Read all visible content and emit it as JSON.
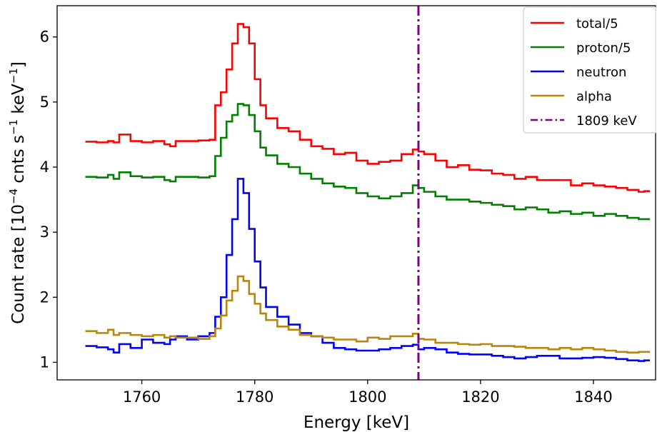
{
  "chart_data": {
    "type": "line",
    "xlabel": "Energy [keV]",
    "ylabel": "Count rate [10$^{-4}$ cnts s$^{-1}$ keV$^{-1}$]",
    "xlim": [
      1745,
      1851
    ],
    "ylim": [
      0.73,
      6.48
    ],
    "xticks": [
      1760,
      1780,
      1800,
      1820,
      1840
    ],
    "yticks": [
      1,
      2,
      3,
      4,
      5,
      6
    ],
    "grid": false,
    "legend_position": "top-right",
    "step": true,
    "vline": {
      "x": 1809,
      "label": "1809 keV",
      "color": "#800080",
      "style": "dashdot"
    },
    "series": [
      {
        "name": "total/5",
        "color": "#ff0000",
        "x": [
          1750,
          1752,
          1754,
          1755,
          1756,
          1758,
          1760,
          1762,
          1764,
          1765,
          1766,
          1768,
          1770,
          1772,
          1773,
          1774,
          1775,
          1776,
          1777,
          1778,
          1779,
          1780,
          1781,
          1782,
          1784,
          1786,
          1788,
          1790,
          1792,
          1794,
          1796,
          1798,
          1800,
          1802,
          1804,
          1806,
          1808,
          1809,
          1810,
          1812,
          1814,
          1816,
          1818,
          1820,
          1822,
          1824,
          1826,
          1828,
          1830,
          1832,
          1834,
          1836,
          1838,
          1840,
          1842,
          1844,
          1846,
          1848,
          1849
        ],
        "y": [
          4.39,
          4.38,
          4.4,
          4.38,
          4.5,
          4.4,
          4.38,
          4.4,
          4.35,
          4.32,
          4.4,
          4.4,
          4.41,
          4.42,
          4.95,
          5.15,
          5.5,
          5.9,
          6.2,
          6.15,
          5.9,
          5.35,
          4.95,
          4.75,
          4.6,
          4.55,
          4.42,
          4.32,
          4.28,
          4.2,
          4.22,
          4.1,
          4.05,
          4.08,
          4.1,
          4.2,
          4.27,
          4.24,
          4.2,
          4.1,
          4.0,
          4.03,
          3.96,
          3.95,
          3.9,
          3.88,
          3.82,
          3.85,
          3.8,
          3.8,
          3.8,
          3.72,
          3.75,
          3.72,
          3.7,
          3.68,
          3.65,
          3.62,
          3.63
        ]
      },
      {
        "name": "proton/5",
        "color": "#008000",
        "x": [
          1750,
          1752,
          1754,
          1755,
          1756,
          1758,
          1760,
          1762,
          1764,
          1765,
          1766,
          1768,
          1770,
          1772,
          1773,
          1774,
          1775,
          1776,
          1777,
          1778,
          1779,
          1780,
          1781,
          1782,
          1784,
          1786,
          1788,
          1790,
          1792,
          1794,
          1796,
          1798,
          1800,
          1802,
          1804,
          1806,
          1808,
          1809,
          1810,
          1812,
          1814,
          1816,
          1818,
          1820,
          1822,
          1824,
          1826,
          1828,
          1830,
          1832,
          1834,
          1836,
          1838,
          1840,
          1842,
          1844,
          1846,
          1848,
          1849
        ],
        "y": [
          3.85,
          3.84,
          3.88,
          3.82,
          3.92,
          3.86,
          3.84,
          3.85,
          3.8,
          3.78,
          3.85,
          3.85,
          3.84,
          3.86,
          4.17,
          4.45,
          4.7,
          4.8,
          4.97,
          4.95,
          4.8,
          4.55,
          4.3,
          4.18,
          4.05,
          4.0,
          3.9,
          3.82,
          3.75,
          3.7,
          3.68,
          3.6,
          3.55,
          3.52,
          3.55,
          3.6,
          3.72,
          3.68,
          3.62,
          3.55,
          3.5,
          3.5,
          3.47,
          3.45,
          3.42,
          3.4,
          3.35,
          3.38,
          3.35,
          3.3,
          3.32,
          3.28,
          3.3,
          3.25,
          3.28,
          3.25,
          3.22,
          3.2,
          3.2
        ]
      },
      {
        "name": "neutron",
        "color": "#0000ff",
        "x": [
          1750,
          1752,
          1754,
          1755,
          1756,
          1758,
          1760,
          1762,
          1764,
          1765,
          1766,
          1768,
          1770,
          1772,
          1773,
          1774,
          1775,
          1776,
          1777,
          1778,
          1779,
          1780,
          1781,
          1782,
          1784,
          1786,
          1788,
          1790,
          1792,
          1794,
          1796,
          1798,
          1800,
          1802,
          1804,
          1806,
          1808,
          1809,
          1810,
          1812,
          1814,
          1816,
          1818,
          1820,
          1822,
          1824,
          1826,
          1828,
          1830,
          1832,
          1834,
          1836,
          1838,
          1840,
          1842,
          1844,
          1846,
          1848,
          1849
        ],
        "y": [
          1.25,
          1.23,
          1.2,
          1.15,
          1.28,
          1.22,
          1.35,
          1.3,
          1.28,
          1.35,
          1.4,
          1.35,
          1.4,
          1.45,
          1.7,
          2.0,
          2.65,
          3.2,
          3.82,
          3.6,
          3.05,
          2.55,
          2.15,
          1.85,
          1.7,
          1.58,
          1.45,
          1.4,
          1.3,
          1.22,
          1.2,
          1.18,
          1.18,
          1.2,
          1.22,
          1.25,
          1.27,
          1.2,
          1.22,
          1.2,
          1.15,
          1.13,
          1.12,
          1.12,
          1.1,
          1.08,
          1.06,
          1.08,
          1.1,
          1.1,
          1.06,
          1.06,
          1.07,
          1.08,
          1.07,
          1.05,
          1.03,
          1.02,
          1.03
        ]
      },
      {
        "name": "alpha",
        "color": "#b8860b",
        "x": [
          1750,
          1752,
          1754,
          1755,
          1756,
          1758,
          1760,
          1762,
          1764,
          1765,
          1766,
          1768,
          1770,
          1772,
          1773,
          1774,
          1775,
          1776,
          1777,
          1778,
          1779,
          1780,
          1781,
          1782,
          1784,
          1786,
          1788,
          1790,
          1792,
          1794,
          1796,
          1798,
          1800,
          1802,
          1804,
          1806,
          1808,
          1809,
          1810,
          1812,
          1814,
          1816,
          1818,
          1820,
          1822,
          1824,
          1826,
          1828,
          1830,
          1832,
          1834,
          1836,
          1838,
          1840,
          1842,
          1844,
          1846,
          1848,
          1849
        ],
        "y": [
          1.48,
          1.45,
          1.5,
          1.42,
          1.45,
          1.42,
          1.4,
          1.42,
          1.38,
          1.4,
          1.38,
          1.38,
          1.36,
          1.4,
          1.52,
          1.72,
          1.95,
          2.1,
          2.32,
          2.25,
          2.05,
          1.9,
          1.75,
          1.65,
          1.55,
          1.5,
          1.42,
          1.4,
          1.38,
          1.35,
          1.35,
          1.32,
          1.38,
          1.36,
          1.4,
          1.4,
          1.44,
          1.36,
          1.35,
          1.3,
          1.3,
          1.28,
          1.27,
          1.28,
          1.25,
          1.25,
          1.24,
          1.22,
          1.22,
          1.2,
          1.22,
          1.2,
          1.22,
          1.2,
          1.18,
          1.16,
          1.15,
          1.16,
          1.16
        ]
      }
    ]
  }
}
